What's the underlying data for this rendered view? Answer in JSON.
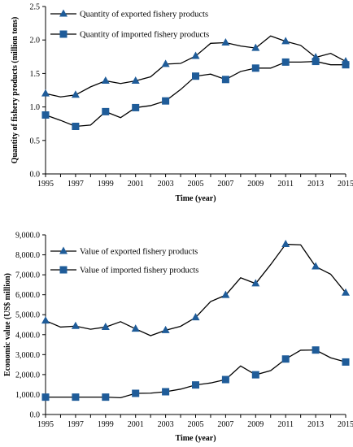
{
  "chart_data": [
    {
      "type": "line",
      "title": "",
      "xlabel": "Time (year)",
      "ylabel": "Quantity of fishery products (million tons)",
      "x": [
        1995,
        1996,
        1997,
        1998,
        1999,
        2000,
        2001,
        2002,
        2003,
        2004,
        2005,
        2006,
        2007,
        2008,
        2009,
        2010,
        2011,
        2012,
        2013,
        2014,
        2015
      ],
      "xticks": [
        "1995",
        "1997",
        "1999",
        "2001",
        "2003",
        "2005",
        "2007",
        "2009",
        "2011",
        "2013",
        "2015"
      ],
      "yticks": [
        "0.0",
        "0.5",
        "1.0",
        "1.5",
        "2.0",
        "2.5"
      ],
      "ylim": [
        0,
        2.5
      ],
      "legend_position": "top-left",
      "series": [
        {
          "name": "Quantity of exported fishery products",
          "marker": "triangle",
          "color": "#1f5c99",
          "values": [
            1.2,
            1.15,
            1.18,
            1.3,
            1.39,
            1.35,
            1.39,
            1.45,
            1.64,
            1.65,
            1.76,
            1.95,
            1.96,
            1.91,
            1.88,
            2.06,
            1.98,
            1.92,
            1.74,
            1.8,
            1.68
          ]
        },
        {
          "name": "Quantity of imported fishery products",
          "marker": "square",
          "color": "#1f5c99",
          "values": [
            0.88,
            0.8,
            0.71,
            0.73,
            0.93,
            0.84,
            0.99,
            1.02,
            1.09,
            1.26,
            1.46,
            1.49,
            1.41,
            1.53,
            1.58,
            1.58,
            1.67,
            1.67,
            1.68,
            1.63,
            1.63
          ]
        }
      ]
    },
    {
      "type": "line",
      "title": "",
      "xlabel": "Time (year)",
      "ylabel": "Economic value (US$ million)",
      "x": [
        1995,
        1996,
        1997,
        1998,
        1999,
        2000,
        2001,
        2002,
        2003,
        2004,
        2005,
        2006,
        2007,
        2008,
        2009,
        2010,
        2011,
        2012,
        2013,
        2014,
        2015
      ],
      "xticks": [
        "1995",
        "1997",
        "1999",
        "2001",
        "2003",
        "2005",
        "2007",
        "2009",
        "2011",
        "2013",
        "2015"
      ],
      "yticks": [
        "0.0",
        "1,000.0",
        "2,000.0",
        "3,000.0",
        "4,000.0",
        "5,000.0",
        "6,000.0",
        "7,000.0",
        "8,000.0",
        "9,000.0"
      ],
      "ylim": [
        0,
        9000
      ],
      "legend_position": "top-left",
      "series": [
        {
          "name": "Value of exported fishery products",
          "marker": "triangle",
          "color": "#1f5c99",
          "values": [
            4700,
            4380,
            4430,
            4270,
            4380,
            4650,
            4290,
            3950,
            4220,
            4420,
            4860,
            5660,
            5980,
            6850,
            6560,
            7510,
            8530,
            8500,
            7410,
            7030,
            6100
          ]
        },
        {
          "name": "Value of imported fishery products",
          "marker": "square",
          "color": "#1f5c99",
          "values": [
            870,
            870,
            870,
            870,
            870,
            840,
            1060,
            1070,
            1140,
            1270,
            1480,
            1580,
            1750,
            2430,
            1990,
            2200,
            2780,
            3220,
            3230,
            2840,
            2630
          ]
        }
      ]
    }
  ]
}
